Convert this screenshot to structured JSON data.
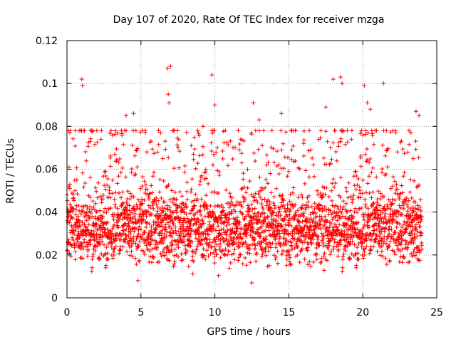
{
  "chart_data": {
    "type": "scatter",
    "title": "Day 107 of 2020, Rate Of TEC Index for receiver mzga",
    "xlabel": "GPS time / hours",
    "ylabel": "ROTI / TECUs",
    "xlim": [
      0,
      25
    ],
    "ylim": [
      0,
      0.12
    ],
    "x_ticks": [
      0,
      5,
      10,
      15,
      20,
      25
    ],
    "x_tick_labels": [
      "0",
      "5",
      "10",
      "15",
      "20",
      "25"
    ],
    "y_ticks": [
      0,
      0.02,
      0.04,
      0.06,
      0.08,
      0.1,
      0.12
    ],
    "y_tick_labels": [
      "0",
      "0.02",
      "0.04",
      "0.06",
      "0.08",
      "0.1",
      "0.12"
    ],
    "grid": true,
    "marker": "+",
    "series": [
      {
        "name": "ROTI",
        "color": "#ff0000",
        "x_range": [
          0,
          24
        ],
        "sample_interval_hours": 0.0083,
        "typical_range": [
          0.012,
          0.07
        ],
        "median": 0.033,
        "notable_points": [
          {
            "x": 0.1,
            "y": 0.078
          },
          {
            "x": 0.2,
            "y": 0.077
          },
          {
            "x": 1.0,
            "y": 0.102
          },
          {
            "x": 1.05,
            "y": 0.099
          },
          {
            "x": 4.0,
            "y": 0.085
          },
          {
            "x": 4.5,
            "y": 0.086
          },
          {
            "x": 6.8,
            "y": 0.107
          },
          {
            "x": 6.85,
            "y": 0.095
          },
          {
            "x": 6.9,
            "y": 0.091
          },
          {
            "x": 7.0,
            "y": 0.108
          },
          {
            "x": 9.2,
            "y": 0.08
          },
          {
            "x": 9.8,
            "y": 0.104
          },
          {
            "x": 10.0,
            "y": 0.09
          },
          {
            "x": 12.6,
            "y": 0.091
          },
          {
            "x": 13.0,
            "y": 0.083
          },
          {
            "x": 14.5,
            "y": 0.086
          },
          {
            "x": 17.5,
            "y": 0.089
          },
          {
            "x": 18.0,
            "y": 0.102
          },
          {
            "x": 18.5,
            "y": 0.103
          },
          {
            "x": 18.6,
            "y": 0.1
          },
          {
            "x": 20.1,
            "y": 0.099
          },
          {
            "x": 20.3,
            "y": 0.091
          },
          {
            "x": 20.5,
            "y": 0.088
          },
          {
            "x": 21.4,
            "y": 0.1
          },
          {
            "x": 23.6,
            "y": 0.087
          },
          {
            "x": 23.8,
            "y": 0.085
          },
          {
            "x": 12.5,
            "y": 0.007
          },
          {
            "x": 4.8,
            "y": 0.008
          }
        ]
      }
    ]
  }
}
